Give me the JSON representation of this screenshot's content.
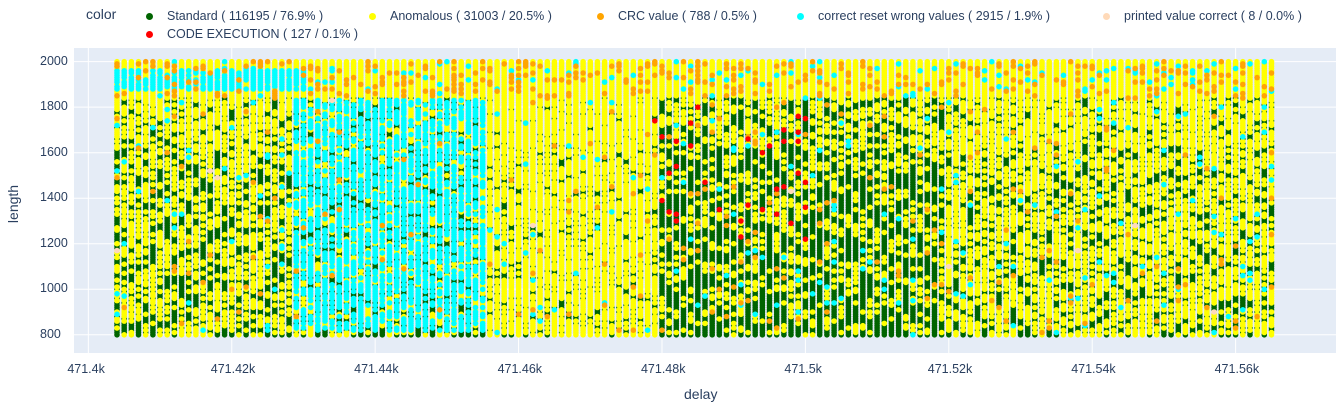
{
  "chart_data": {
    "type": "scatter",
    "xlabel": "delay",
    "ylabel": "length",
    "xlim": [
      471398,
      471574
    ],
    "ylim": [
      720,
      2060
    ],
    "x_data_range": [
      471404,
      471565
    ],
    "y_data_range": [
      800,
      2000
    ],
    "x_step": 1,
    "y_step": 10,
    "x_ticks": [
      471400,
      471420,
      471440,
      471460,
      471480,
      471500,
      471520,
      471540,
      471560
    ],
    "x_tick_labels": [
      "471.4k",
      "471.42k",
      "471.44k",
      "471.46k",
      "471.48k",
      "471.5k",
      "471.52k",
      "471.54k",
      "471.56k"
    ],
    "y_ticks": [
      800,
      1000,
      1200,
      1400,
      1600,
      1800,
      2000
    ],
    "y_tick_labels": [
      "800",
      "1000",
      "1200",
      "1400",
      "1600",
      "1800",
      "2000"
    ],
    "grid": true,
    "legend_title": "color",
    "legend_position": "top",
    "series": [
      {
        "name": "Standard ( 116195 / 76.9% )",
        "color": "#006400",
        "count": 116195,
        "percent": 76.9
      },
      {
        "name": "Anomalous ( 31003 / 20.5% )",
        "color": "#ffff00",
        "count": 31003,
        "percent": 20.5
      },
      {
        "name": "CRC value ( 788 / 0.5% )",
        "color": "#ffa500",
        "count": 788,
        "percent": 0.5
      },
      {
        "name": "correct reset wrong values ( 2915 / 1.9% )",
        "color": "#00ffff",
        "count": 2915,
        "percent": 1.9
      },
      {
        "name": "printed value correct ( 8 / 0.0% )",
        "color": "#ffdab9",
        "count": 8,
        "percent": 0.0
      },
      {
        "name": "CODE EXECUTION ( 127 / 0.1% )",
        "color": "#ff0000",
        "count": 127,
        "percent": 0.1
      }
    ],
    "plot_bg": "#e5ecf6"
  }
}
